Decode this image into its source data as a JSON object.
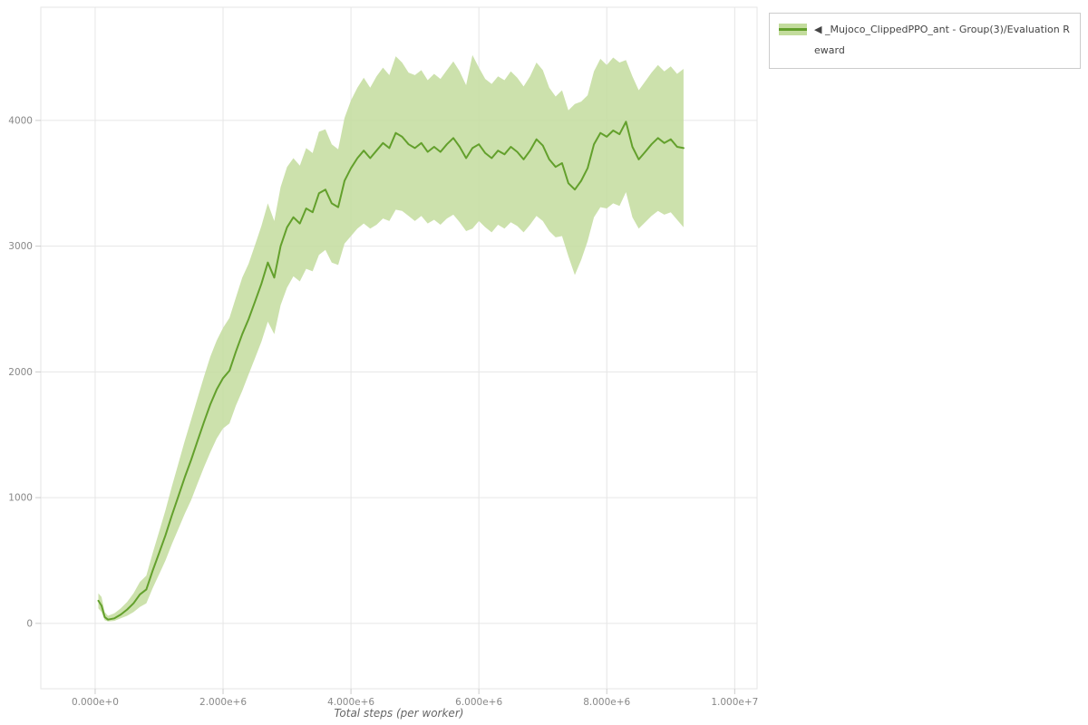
{
  "figure": {
    "background": "#ffffff"
  },
  "legend": {
    "position": "top_right",
    "items": [
      {
        "label": "◀ _Mujoco_ClippedPPO_ant - Group(3)/Evaluation Reward",
        "band_color": "#c3dc9d",
        "line_color": "#63a02c"
      }
    ]
  },
  "axes": {
    "x_label": "Total steps (per worker)"
  },
  "chart_data": {
    "type": "line",
    "title": "",
    "xlabel": "Total steps (per worker)",
    "ylabel": "",
    "xlim": [
      -850000,
      10350000
    ],
    "ylim": [
      -520,
      4900
    ],
    "grid": true,
    "legend_position": "top_right",
    "band_color": "#c3dc9d",
    "line_color": "#63a02c",
    "x_ticks": [
      {
        "value": 0,
        "label": "0.000e+0"
      },
      {
        "value": 2000000,
        "label": "2.000e+6"
      },
      {
        "value": 4000000,
        "label": "4.000e+6"
      },
      {
        "value": 6000000,
        "label": "6.000e+6"
      },
      {
        "value": 8000000,
        "label": "8.000e+6"
      },
      {
        "value": 10000000,
        "label": "1.000e+7"
      }
    ],
    "y_ticks": [
      {
        "value": 0,
        "label": "0"
      },
      {
        "value": 1000,
        "label": "1000"
      },
      {
        "value": 2000,
        "label": "2000"
      },
      {
        "value": 3000,
        "label": "3000"
      },
      {
        "value": 4000,
        "label": "4000"
      }
    ],
    "series": [
      {
        "name": "_Mujoco_ClippedPPO_ant - Group(3)/Evaluation Reward",
        "x_unit": 1000000,
        "x": [
          0.05,
          0.1,
          0.15,
          0.2,
          0.3,
          0.4,
          0.5,
          0.6,
          0.7,
          0.8,
          0.9,
          1.0,
          1.1,
          1.2,
          1.3,
          1.4,
          1.5,
          1.6,
          1.7,
          1.8,
          1.9,
          2.0,
          2.1,
          2.2,
          2.3,
          2.4,
          2.5,
          2.6,
          2.7,
          2.8,
          2.9,
          3.0,
          3.1,
          3.2,
          3.3,
          3.4,
          3.5,
          3.6,
          3.7,
          3.8,
          3.9,
          4.0,
          4.1,
          4.2,
          4.3,
          4.4,
          4.5,
          4.6,
          4.7,
          4.8,
          4.9,
          5.0,
          5.1,
          5.2,
          5.3,
          5.4,
          5.5,
          5.6,
          5.7,
          5.8,
          5.9,
          6.0,
          6.1,
          6.2,
          6.3,
          6.4,
          6.5,
          6.6,
          6.7,
          6.8,
          6.9,
          7.0,
          7.1,
          7.2,
          7.3,
          7.4,
          7.5,
          7.6,
          7.7,
          7.8,
          7.9,
          8.0,
          8.1,
          8.2,
          8.3,
          8.4,
          8.5,
          8.6,
          8.7,
          8.8,
          8.9,
          9.0,
          9.1,
          9.2
        ],
        "mean": [
          180,
          140,
          50,
          30,
          40,
          70,
          110,
          160,
          230,
          270,
          420,
          560,
          700,
          860,
          1010,
          1160,
          1300,
          1450,
          1600,
          1740,
          1860,
          1950,
          2010,
          2160,
          2300,
          2420,
          2560,
          2700,
          2870,
          2750,
          3000,
          3150,
          3230,
          3180,
          3300,
          3270,
          3420,
          3450,
          3340,
          3310,
          3520,
          3620,
          3700,
          3760,
          3700,
          3760,
          3820,
          3780,
          3900,
          3870,
          3810,
          3780,
          3820,
          3750,
          3790,
          3750,
          3810,
          3860,
          3790,
          3700,
          3780,
          3810,
          3740,
          3700,
          3760,
          3730,
          3790,
          3750,
          3690,
          3760,
          3850,
          3800,
          3690,
          3630,
          3660,
          3500,
          3450,
          3520,
          3620,
          3810,
          3900,
          3870,
          3920,
          3890,
          3990,
          3790,
          3690,
          3750,
          3810,
          3860,
          3820,
          3850,
          3790,
          3780
        ],
        "lower": [
          120,
          90,
          25,
          15,
          20,
          40,
          60,
          90,
          130,
          160,
          280,
          390,
          500,
          630,
          750,
          870,
          980,
          1110,
          1240,
          1360,
          1470,
          1550,
          1590,
          1730,
          1850,
          1980,
          2110,
          2240,
          2400,
          2300,
          2530,
          2670,
          2760,
          2720,
          2820,
          2800,
          2930,
          2970,
          2870,
          2850,
          3020,
          3080,
          3140,
          3180,
          3140,
          3170,
          3220,
          3200,
          3290,
          3280,
          3240,
          3200,
          3240,
          3180,
          3210,
          3170,
          3220,
          3250,
          3190,
          3120,
          3140,
          3200,
          3150,
          3110,
          3170,
          3140,
          3190,
          3160,
          3110,
          3170,
          3240,
          3200,
          3120,
          3070,
          3080,
          2920,
          2770,
          2890,
          3040,
          3230,
          3310,
          3300,
          3340,
          3320,
          3430,
          3230,
          3140,
          3190,
          3240,
          3280,
          3250,
          3270,
          3210,
          3150
        ],
        "upper": [
          240,
          210,
          90,
          60,
          80,
          120,
          170,
          240,
          330,
          380,
          560,
          730,
          900,
          1090,
          1270,
          1450,
          1620,
          1790,
          1960,
          2120,
          2250,
          2350,
          2430,
          2590,
          2750,
          2860,
          3010,
          3160,
          3340,
          3200,
          3470,
          3630,
          3700,
          3640,
          3780,
          3740,
          3910,
          3930,
          3810,
          3770,
          4020,
          4160,
          4260,
          4340,
          4260,
          4350,
          4420,
          4360,
          4510,
          4460,
          4380,
          4360,
          4400,
          4320,
          4370,
          4330,
          4400,
          4470,
          4390,
          4280,
          4520,
          4420,
          4330,
          4290,
          4350,
          4320,
          4390,
          4340,
          4270,
          4350,
          4460,
          4400,
          4260,
          4190,
          4240,
          4080,
          4130,
          4150,
          4200,
          4390,
          4490,
          4440,
          4500,
          4460,
          4480,
          4350,
          4240,
          4310,
          4380,
          4440,
          4390,
          4430,
          4370,
          4410
        ]
      }
    ]
  }
}
